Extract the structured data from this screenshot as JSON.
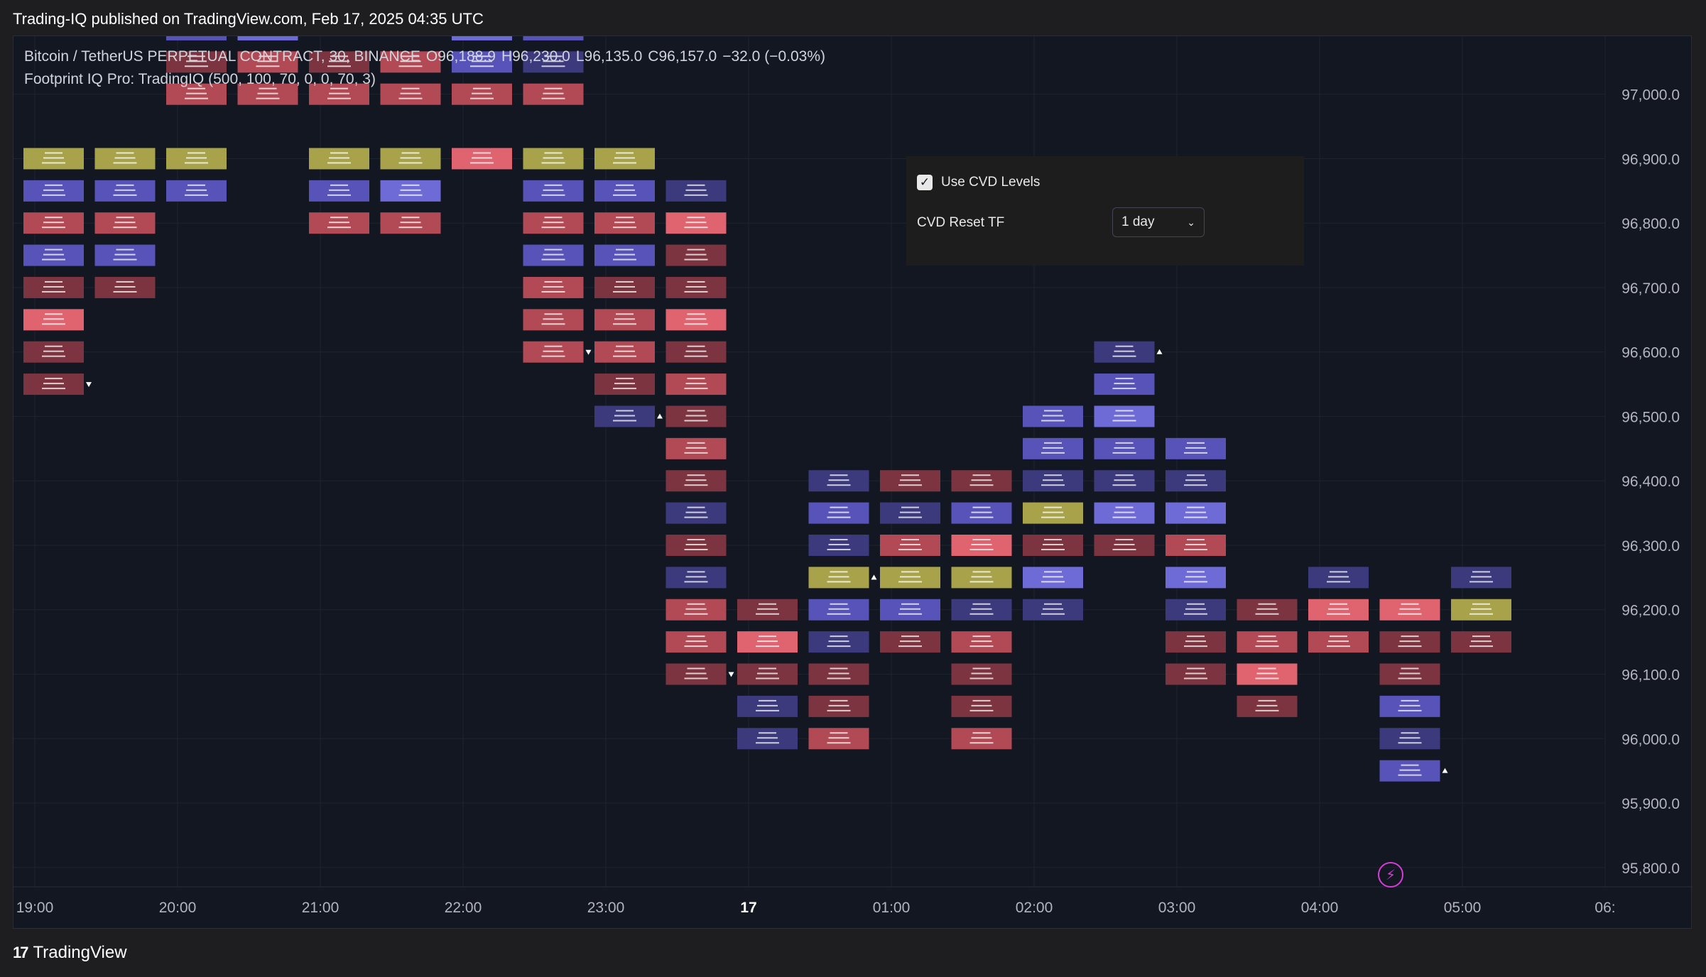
{
  "header": {
    "published_text": "Trading-IQ published on TradingView.com, Feb 17, 2025 04:35 UTC"
  },
  "legend": {
    "symbol": "Bitcoin / TetherUS PERPETUAL CONTRACT, 30, BINANCE",
    "open": "O96,188.9",
    "high": "H96,230.0",
    "low": "L96,135.0",
    "close": "C96,157.0",
    "change": "−32.0 (−0.03%)",
    "indicator": "Footprint IQ Pro: TradingIQ (500, 100, 70, 0, 0, 70, 3)"
  },
  "settings": {
    "use_cvd_label": "Use CVD Levels",
    "use_cvd_checked": true,
    "reset_label": "CVD Reset TF",
    "reset_value": "1 day"
  },
  "footer": {
    "brand": "TradingView"
  },
  "colors": {
    "background": "#131722",
    "purple": "#5753b8",
    "dark_purple": "#3c3a7d",
    "bright_purple": "#6e6ad6",
    "red": "#b24a55",
    "dark_red": "#7c3540",
    "bright_red": "#e06470",
    "olive": "#a8a34a"
  },
  "chart_data": {
    "type": "footprint",
    "y_axis": {
      "min": 95770,
      "max": 97090,
      "ticks": [
        97000,
        96900,
        96800,
        96700,
        96600,
        96500,
        96400,
        96300,
        96200,
        96100,
        96000,
        95900,
        95800
      ],
      "tick_labels": [
        "97,000.0",
        "96,900.0",
        "96,800.0",
        "96,700.0",
        "96,600.0",
        "96,500.0",
        "96,400.0",
        "96,300.0",
        "96,200.0",
        "96,100.0",
        "96,000.0",
        "95,900.0",
        "95,800.0"
      ]
    },
    "x_axis": {
      "labels": [
        "19:00",
        "20:00",
        "21:00",
        "22:00",
        "23:00",
        "17",
        "01:00",
        "02:00",
        "03:00",
        "04:00",
        "05:00",
        "06:"
      ],
      "label_bar_index": [
        0,
        2,
        4,
        6,
        8,
        10,
        12,
        14,
        16,
        18,
        20,
        22
      ]
    },
    "bars": [
      {
        "i": 0,
        "cells": [
          [
            96900,
            "o"
          ],
          [
            96850,
            "p"
          ],
          [
            96800,
            "r"
          ],
          [
            96750,
            "p"
          ],
          [
            96700,
            "dr"
          ],
          [
            96650,
            "br"
          ],
          [
            96600,
            "dr"
          ],
          [
            96550,
            "dr"
          ]
        ],
        "marker": {
          "price": 96550,
          "dir": "down"
        }
      },
      {
        "i": 1,
        "cells": [
          [
            96900,
            "o"
          ],
          [
            96850,
            "p"
          ],
          [
            96800,
            "r"
          ],
          [
            96750,
            "p"
          ],
          [
            96700,
            "dr"
          ]
        ]
      },
      {
        "i": 2,
        "cells": [
          [
            97100,
            "p"
          ],
          [
            97050,
            "dr"
          ],
          [
            97000,
            "r"
          ],
          [
            96900,
            "o"
          ],
          [
            96850,
            "p"
          ]
        ]
      },
      {
        "i": 3,
        "cells": [
          [
            97100,
            "bp"
          ],
          [
            97050,
            "r"
          ],
          [
            97000,
            "r"
          ]
        ]
      },
      {
        "i": 4,
        "cells": [
          [
            97050,
            "dr"
          ],
          [
            97000,
            "r"
          ],
          [
            96900,
            "o"
          ],
          [
            96850,
            "p"
          ],
          [
            96800,
            "r"
          ]
        ]
      },
      {
        "i": 5,
        "cells": [
          [
            97050,
            "r"
          ],
          [
            97000,
            "r"
          ],
          [
            96900,
            "o"
          ],
          [
            96850,
            "bp"
          ],
          [
            96800,
            "r"
          ]
        ]
      },
      {
        "i": 6,
        "cells": [
          [
            97100,
            "bp"
          ],
          [
            97050,
            "p"
          ],
          [
            97000,
            "r"
          ],
          [
            96900,
            "br"
          ]
        ]
      },
      {
        "i": 7,
        "cells": [
          [
            97100,
            "p"
          ],
          [
            97050,
            "dp"
          ],
          [
            97000,
            "r"
          ],
          [
            96900,
            "o"
          ],
          [
            96850,
            "p"
          ],
          [
            96800,
            "r"
          ],
          [
            96750,
            "p"
          ],
          [
            96700,
            "r"
          ],
          [
            96650,
            "r"
          ],
          [
            96600,
            "r"
          ]
        ],
        "marker": {
          "price": 96600,
          "dir": "down"
        }
      },
      {
        "i": 8,
        "cells": [
          [
            96900,
            "o"
          ],
          [
            96850,
            "p"
          ],
          [
            96800,
            "r"
          ],
          [
            96750,
            "p"
          ],
          [
            96700,
            "dr"
          ],
          [
            96650,
            "r"
          ],
          [
            96600,
            "r"
          ],
          [
            96550,
            "dr"
          ],
          [
            96500,
            "dp"
          ]
        ],
        "marker": {
          "price": 96500,
          "dir": "up"
        }
      },
      {
        "i": 9,
        "cells": [
          [
            96850,
            "dp"
          ],
          [
            96800,
            "br"
          ],
          [
            96750,
            "dr"
          ],
          [
            96700,
            "dr"
          ],
          [
            96650,
            "br"
          ],
          [
            96600,
            "dr"
          ],
          [
            96550,
            "r"
          ],
          [
            96500,
            "dr"
          ],
          [
            96450,
            "r"
          ],
          [
            96400,
            "dr"
          ],
          [
            96350,
            "dp"
          ],
          [
            96300,
            "dr"
          ],
          [
            96250,
            "dp"
          ],
          [
            96200,
            "r"
          ],
          [
            96150,
            "r"
          ],
          [
            96100,
            "dr"
          ]
        ],
        "marker": {
          "price": 96100,
          "dir": "down"
        }
      },
      {
        "i": 10,
        "cells": [
          [
            96200,
            "dr"
          ],
          [
            96150,
            "br"
          ],
          [
            96100,
            "dr"
          ],
          [
            96050,
            "dp"
          ],
          [
            96000,
            "dp"
          ]
        ]
      },
      {
        "i": 11,
        "cells": [
          [
            96400,
            "dp"
          ],
          [
            96350,
            "p"
          ],
          [
            96300,
            "dp"
          ],
          [
            96250,
            "o"
          ],
          [
            96200,
            "p"
          ],
          [
            96150,
            "dp"
          ],
          [
            96100,
            "dr"
          ],
          [
            96050,
            "dr"
          ],
          [
            96000,
            "r"
          ]
        ],
        "marker": {
          "price": 96250,
          "dir": "up"
        }
      },
      {
        "i": 12,
        "cells": [
          [
            96400,
            "dr"
          ],
          [
            96350,
            "dp"
          ],
          [
            96300,
            "r"
          ],
          [
            96250,
            "o"
          ],
          [
            96200,
            "p"
          ],
          [
            96150,
            "dr"
          ]
        ]
      },
      {
        "i": 13,
        "cells": [
          [
            96400,
            "dr"
          ],
          [
            96350,
            "p"
          ],
          [
            96300,
            "br"
          ],
          [
            96250,
            "o"
          ],
          [
            96200,
            "dp"
          ],
          [
            96150,
            "r"
          ],
          [
            96100,
            "dr"
          ],
          [
            96050,
            "dr"
          ],
          [
            96000,
            "r"
          ]
        ]
      },
      {
        "i": 14,
        "cells": [
          [
            96500,
            "p"
          ],
          [
            96450,
            "p"
          ],
          [
            96400,
            "dp"
          ],
          [
            96350,
            "o"
          ],
          [
            96300,
            "dr"
          ],
          [
            96250,
            "bp"
          ],
          [
            96200,
            "dp"
          ]
        ]
      },
      {
        "i": 15,
        "cells": [
          [
            96600,
            "dp"
          ],
          [
            96550,
            "p"
          ],
          [
            96500,
            "bp"
          ],
          [
            96450,
            "p"
          ],
          [
            96400,
            "dp"
          ],
          [
            96350,
            "bp"
          ],
          [
            96300,
            "dr"
          ]
        ],
        "marker": {
          "price": 96600,
          "dir": "up"
        }
      },
      {
        "i": 16,
        "cells": [
          [
            96450,
            "p"
          ],
          [
            96400,
            "dp"
          ],
          [
            96350,
            "bp"
          ],
          [
            96300,
            "r"
          ],
          [
            96250,
            "bp"
          ],
          [
            96200,
            "dp"
          ],
          [
            96150,
            "dr"
          ],
          [
            96100,
            "dr"
          ]
        ]
      },
      {
        "i": 17,
        "cells": [
          [
            96200,
            "dr"
          ],
          [
            96150,
            "r"
          ],
          [
            96100,
            "br"
          ],
          [
            96050,
            "dr"
          ]
        ]
      },
      {
        "i": 18,
        "cells": [
          [
            96250,
            "dp"
          ],
          [
            96200,
            "br"
          ],
          [
            96150,
            "r"
          ]
        ]
      },
      {
        "i": 19,
        "cells": [
          [
            96200,
            "br"
          ],
          [
            96150,
            "dr"
          ],
          [
            96100,
            "dr"
          ],
          [
            96050,
            "p"
          ],
          [
            96000,
            "dp"
          ],
          [
            95950,
            "p"
          ]
        ],
        "marker": {
          "price": 95950,
          "dir": "up"
        }
      },
      {
        "i": 20,
        "cells": [
          [
            96250,
            "dp"
          ],
          [
            96200,
            "o"
          ],
          [
            96150,
            "dr"
          ]
        ]
      }
    ]
  }
}
